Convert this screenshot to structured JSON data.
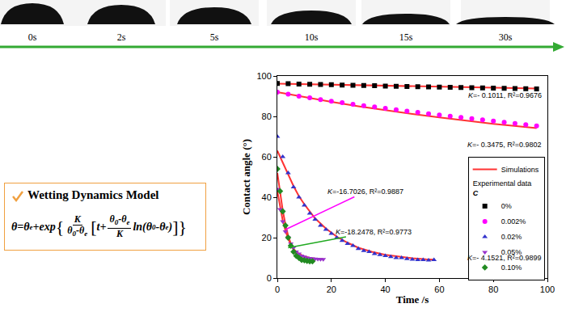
{
  "timeline": {
    "labels": [
      "0s",
      "2s",
      "5s",
      "10s",
      "15s",
      "30s"
    ]
  },
  "model": {
    "title": "Wetting Dynamics Model",
    "formula": [
      {
        "t": "θ=θ"
      },
      {
        "sub": "e"
      },
      {
        "t": "+exp"
      },
      {
        "big": "{"
      },
      {
        "frac": [
          [
            {
              "t": "K"
            }
          ],
          [
            {
              "t": "θ"
            },
            {
              "sub": "0"
            },
            {
              "t": "-θ"
            },
            {
              "sub": "e"
            }
          ]
        ]
      },
      {
        "big": "["
      },
      {
        "t": "t+"
      },
      {
        "frac": [
          [
            {
              "t": "θ"
            },
            {
              "sub": "0"
            },
            {
              "t": "-θ"
            },
            {
              "sub": "e"
            }
          ],
          [
            {
              "t": "K"
            }
          ]
        ]
      },
      {
        "t": "ln(θ"
      },
      {
        "sub": "0"
      },
      {
        "t": "-θ"
      },
      {
        "sub": "e"
      },
      {
        "t": ")"
      },
      {
        "big": "]"
      },
      {
        "big": "}"
      }
    ]
  },
  "chart_data": {
    "type": "scatter",
    "x_label": "Time /s",
    "y_label": "Contact angle (°)",
    "xlim": [
      0,
      100
    ],
    "ylim": [
      0,
      100
    ],
    "xticks": [
      0,
      20,
      40,
      60,
      80,
      100
    ],
    "yticks": [
      0,
      20,
      40,
      60,
      80,
      100
    ],
    "grid": false,
    "legend": "right",
    "legend_group_title": [
      "Experimental data",
      "C"
    ],
    "series": [
      {
        "name": "Simulations",
        "type": "line",
        "color": "#ff3333",
        "line_style": "solid",
        "x": [
          0,
          48,
          96,
          null,
          0,
          10,
          20,
          30,
          40,
          50,
          60,
          70,
          80,
          90,
          96,
          null,
          0,
          2,
          4,
          6,
          8,
          10,
          14,
          18,
          22,
          26,
          30,
          35,
          40,
          45,
          50,
          55,
          58,
          null,
          0,
          1,
          2,
          3,
          4,
          5,
          6,
          8,
          10,
          12,
          14,
          17,
          null,
          0,
          1,
          2,
          3,
          4,
          5,
          6,
          7,
          8,
          10,
          12,
          14
        ],
        "values": [
          96.2,
          95,
          93.8,
          null,
          92,
          89.5,
          87.2,
          85,
          83,
          81.2,
          79.5,
          77.8,
          76.3,
          75,
          74.2,
          null,
          63,
          57,
          51,
          45.5,
          40.5,
          36.5,
          29.5,
          24.5,
          20.5,
          17.5,
          15,
          13,
          11.5,
          10.5,
          9.8,
          9.3,
          9.1,
          null,
          43,
          35,
          28.5,
          23.5,
          19.5,
          16.5,
          14.3,
          12,
          10.7,
          10,
          9.6,
          9.4,
          null,
          52,
          42,
          33.5,
          26.5,
          21,
          17,
          14,
          12,
          10.7,
          9.3,
          8.8,
          8.6
        ]
      },
      {
        "name": "0%",
        "type": "scatter",
        "marker": "square",
        "color": "#000000",
        "x": [
          0,
          4,
          8,
          12,
          16,
          20,
          24,
          28,
          32,
          36,
          40,
          44,
          48,
          52,
          56,
          60,
          64,
          68,
          72,
          76,
          80,
          84,
          88,
          92,
          96
        ],
        "values": [
          96.3,
          96.2,
          96.0,
          95.9,
          95.8,
          95.7,
          95.5,
          95.4,
          95.3,
          95.2,
          95.0,
          94.9,
          94.8,
          94.7,
          94.6,
          94.5,
          94.4,
          94.3,
          94.2,
          94.1,
          94.0,
          93.9,
          93.8,
          93.7,
          93.6
        ]
      },
      {
        "name": "0.002%",
        "type": "scatter",
        "marker": "circle",
        "color": "#ff00ff",
        "x": [
          0,
          4,
          8,
          12,
          16,
          20,
          24,
          28,
          32,
          36,
          40,
          44,
          48,
          52,
          56,
          60,
          64,
          68,
          72,
          76,
          80,
          84,
          88,
          92,
          96
        ],
        "values": [
          92.0,
          91.0,
          90.0,
          89.2,
          88.3,
          87.5,
          86.8,
          86.0,
          85.3,
          84.7,
          84.0,
          83.3,
          82.6,
          82.0,
          81.3,
          80.7,
          80.1,
          79.5,
          78.9,
          78.3,
          77.7,
          77.1,
          76.5,
          75.9,
          75.3
        ]
      },
      {
        "name": "0.02%",
        "type": "scatter",
        "marker": "triangle-up",
        "color": "#3333cc",
        "x": [
          0,
          2,
          4,
          6,
          8,
          10,
          12,
          14,
          16,
          18,
          20,
          22,
          24,
          26,
          28,
          30,
          32,
          34,
          36,
          38,
          40,
          42,
          44,
          46,
          48,
          50,
          52,
          54,
          56,
          58
        ],
        "values": [
          70,
          60,
          52,
          45,
          40,
          36,
          32,
          29,
          26,
          24,
          22,
          20,
          18.5,
          17,
          16,
          14.5,
          13.5,
          13,
          12,
          11.5,
          11,
          10.5,
          10,
          10,
          9.5,
          9.2,
          9,
          9,
          8.8,
          9
        ]
      },
      {
        "name": "0.05%",
        "type": "scatter",
        "marker": "triangle-down",
        "color": "#9933cc",
        "x": [
          0,
          1,
          2,
          3,
          4,
          5,
          6,
          7,
          8,
          9,
          10,
          11,
          12,
          13,
          14,
          15,
          16,
          17
        ],
        "values": [
          44,
          34,
          28,
          23,
          20,
          17,
          15,
          13,
          12,
          11,
          10.5,
          10,
          9.8,
          9.6,
          9.5,
          9.4,
          9.3,
          9.3
        ]
      },
      {
        "name": "0.10%",
        "type": "scatter",
        "marker": "diamond",
        "color": "#228b22",
        "x": [
          0,
          1,
          2,
          3,
          4,
          5,
          6,
          7,
          8,
          9,
          10,
          11,
          12,
          13
        ],
        "values": [
          54,
          43,
          33,
          26,
          20,
          16,
          13,
          11,
          10,
          9,
          8.8,
          8.5,
          8.3,
          8.3
        ]
      }
    ],
    "annotations": [
      {
        "text": "K=- 0.1011, R²=0.9676",
        "x": 98.5,
        "y": 90.5
      },
      {
        "text": "K=- 0.3475, R²=0.9802",
        "x": 98.5,
        "y": 66
      },
      {
        "text": "K=-16.7026, R²=0.9887",
        "x": 3,
        "y": 24,
        "color": "#ff00ff"
      },
      {
        "text": "K=-18.2478, R²=0.9773",
        "x": 4,
        "y": 15,
        "color": "#22aa22"
      },
      {
        "text": "K=- 4.1521, R²=0.9899",
        "x": 98.5,
        "y": 10
      }
    ]
  }
}
